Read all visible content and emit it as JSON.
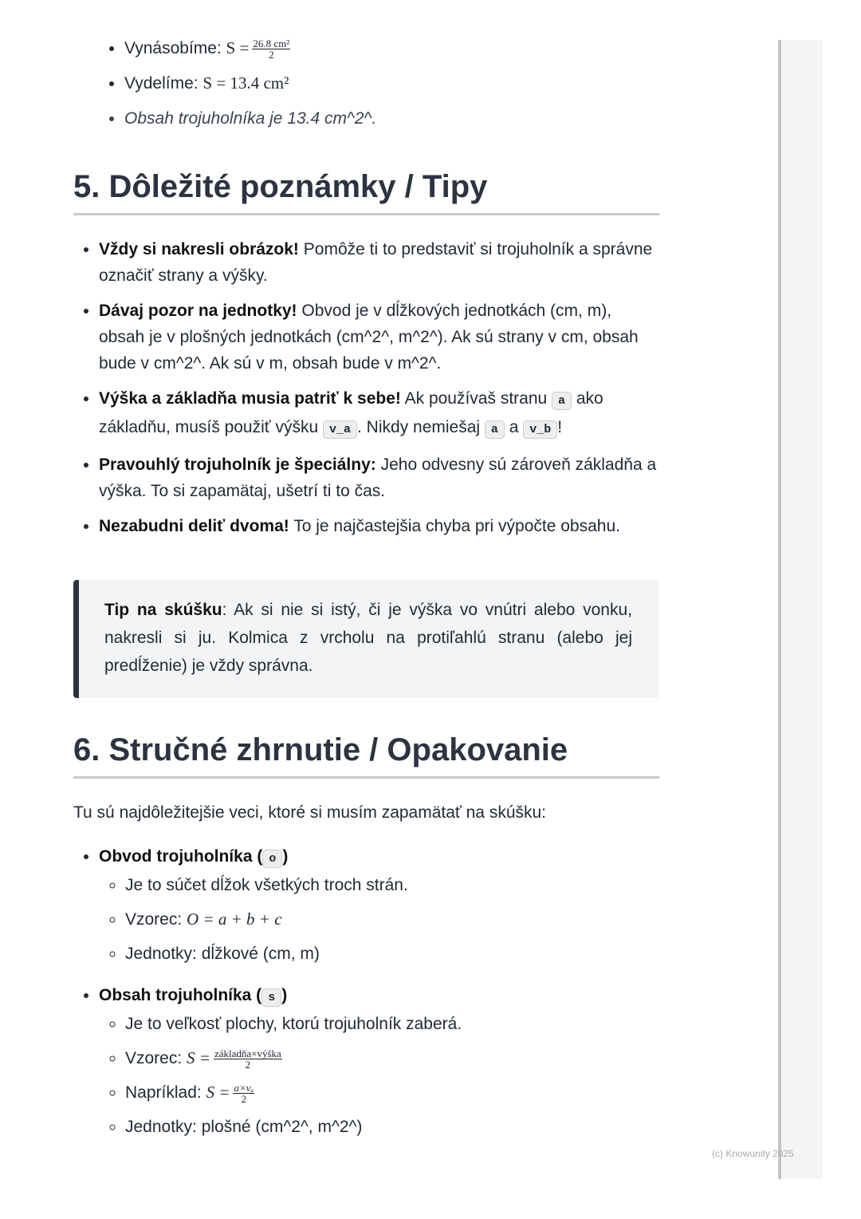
{
  "top_list": {
    "item1_label": "Vynásobíme:",
    "item1_lhs": "S =",
    "item1_num": "26.8 cm²",
    "item1_den": "2",
    "item2_label": "Vydelíme:",
    "item2_math": "S = 13.4 cm²",
    "item3": "Obsah trojuholníka je 13.4 cm^2^."
  },
  "section5": {
    "title": "5. Dôležité poznámky / Tipy",
    "tips": [
      {
        "bold": "Vždy si nakresli obrázok!",
        "text": " Pomôže ti to predstaviť si trojuholník a správne označiť strany a výšky."
      },
      {
        "bold": "Dávaj pozor na jednotky!",
        "text": " Obvod je v dĺžkových jednotkách (cm, m), obsah je v plošných jednotkách (cm^2^, m^2^). Ak sú strany v cm, obsah bude v cm^2^. Ak sú v m, obsah bude v m^2^."
      },
      {
        "bold": "Výška a základňa musia patriť k sebe!",
        "t1": " Ak používaš stranu ",
        "c1": "a",
        "t2": " ako základňu, musíš použiť výšku ",
        "c2": "v_a",
        "t3": ". Nikdy nemiešaj ",
        "c3": "a",
        "t4": " a ",
        "c4": "v_b",
        "t5": "!"
      },
      {
        "bold": "Pravouhlý trojuholník je špeciálny:",
        "text": " Jeho odvesny sú zároveň základňa a výška. To si zapamätaj, ušetrí ti to čas."
      },
      {
        "bold": "Nezabudni deliť dvoma!",
        "text": " To je najčastejšia chyba pri výpočte obsahu."
      }
    ],
    "quote_bold": "Tip na skúšku",
    "quote_text": ": Ak si nie si istý, či je výška vo vnútri alebo vonku, nakresli si ju. Kolmica z vrcholu na protiľahlú stranu (alebo jej predĺženie) je vždy správna."
  },
  "section6": {
    "title": "6. Stručné zhrnutie / Opakovanie",
    "intro": "Tu sú najdôležitejšie veci, ktoré si musím zapamätať na skúšku:",
    "obvod": {
      "title": "Obvod trojuholníka (",
      "code": "o",
      "close": ")",
      "items": [
        "Je to súčet dĺžok všetkých troch strán.",
        "Vzorec:",
        "Jednotky: dĺžkové (cm, m)"
      ],
      "formula": "O = a + b + c"
    },
    "obsah": {
      "title": "Obsah trojuholníka (",
      "code": "s",
      "close": ")",
      "item1": "Je to veľkosť plochy, ktorú trojuholník zaberá.",
      "item2_label": "Vzorec:",
      "item2_lhs": "S =",
      "item2_num": "základňa×výška",
      "item2_den": "2",
      "item3_label": "Napríklad:",
      "item3_lhs": "S =",
      "item3_num": "a×vₐ",
      "item3_den": "2",
      "item4": "Jednotky: plošné (cm^2^, m^2^)"
    }
  },
  "footer": "(c) Knowunity 2025"
}
